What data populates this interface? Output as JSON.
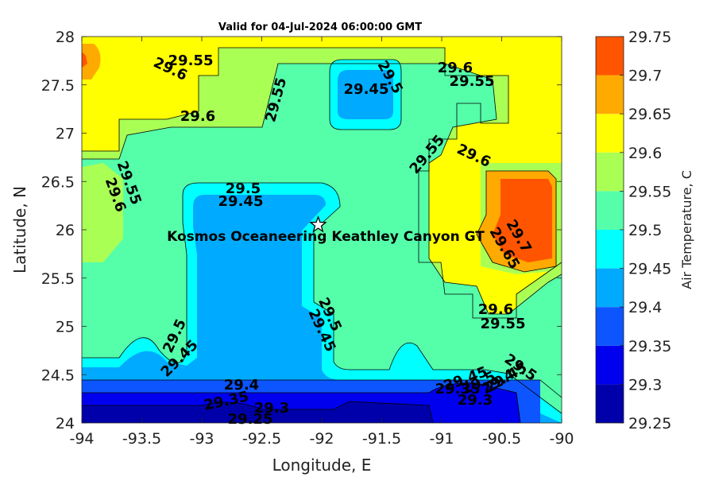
{
  "chart_data": {
    "type": "heatmap",
    "title": "Valid for 04-Jul-2024 06:00:00 GMT",
    "xlabel": "Longitude, E",
    "ylabel": "Latitude, N",
    "xlim": [
      -94,
      -90
    ],
    "ylim": [
      24,
      28
    ],
    "x_ticks": [
      "-94",
      "-93.5",
      "-93",
      "-92.5",
      "-92",
      "-91.5",
      "-91",
      "-90.5",
      "-90"
    ],
    "y_ticks": [
      "28",
      "27.5",
      "27",
      "26.5",
      "26",
      "25.5",
      "25",
      "24.5",
      "24"
    ],
    "colorbar": {
      "label": "Air Temperature, C",
      "levels": [
        29.25,
        29.3,
        29.35,
        29.4,
        29.45,
        29.5,
        29.55,
        29.6,
        29.65,
        29.7,
        29.75
      ],
      "tick_labels": [
        "29.75",
        "29.7",
        "29.65",
        "29.6",
        "29.55",
        "29.5",
        "29.45",
        "29.4",
        "29.35",
        "29.3",
        "29.25"
      ],
      "colors": [
        "#0000aa",
        "#0000ee",
        "#0c55ff",
        "#00aaff",
        "#00ffff",
        "#55ffaa",
        "#aaff55",
        "#ffff00",
        "#ffaa00",
        "#ff5500",
        "#ff0000"
      ]
    },
    "site": {
      "name": "Kosmos Oceaneering Keathley Canyon GT",
      "lon": -92.03,
      "lat": 26.05
    },
    "contour_labels": [
      "29.55",
      "29.6",
      "29.6",
      "29.55",
      "29.6",
      "29.55",
      "29.5",
      "29.45",
      "29.5",
      "29.45",
      "29.6",
      "29.55",
      "29.55",
      "29.6",
      "29.5",
      "29.45",
      "29.5",
      "29.45",
      "29.7",
      "29.65",
      "29.6",
      "29.55",
      "29.5",
      "29.45",
      "29.4",
      "29.35",
      "29.3",
      "29.25",
      "29.5",
      "29.4",
      "29.35",
      "29.3",
      "29.45"
    ]
  }
}
